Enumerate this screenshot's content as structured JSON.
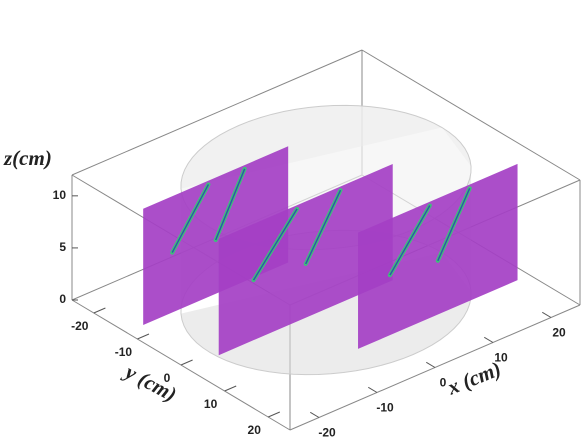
{
  "chart_data": {
    "type": "box3d",
    "xlabel": "x (cm)",
    "ylabel": "y (cm)",
    "zlabel": "z(cm)",
    "xlim": [
      -25,
      25
    ],
    "ylim": [
      -25,
      25
    ],
    "zlim": [
      0,
      12
    ],
    "xticks": [
      -20,
      -10,
      0,
      10,
      20
    ],
    "yticks": [
      -20,
      -10,
      0,
      10,
      20
    ],
    "zticks": [
      0,
      5,
      10
    ]
  }
}
